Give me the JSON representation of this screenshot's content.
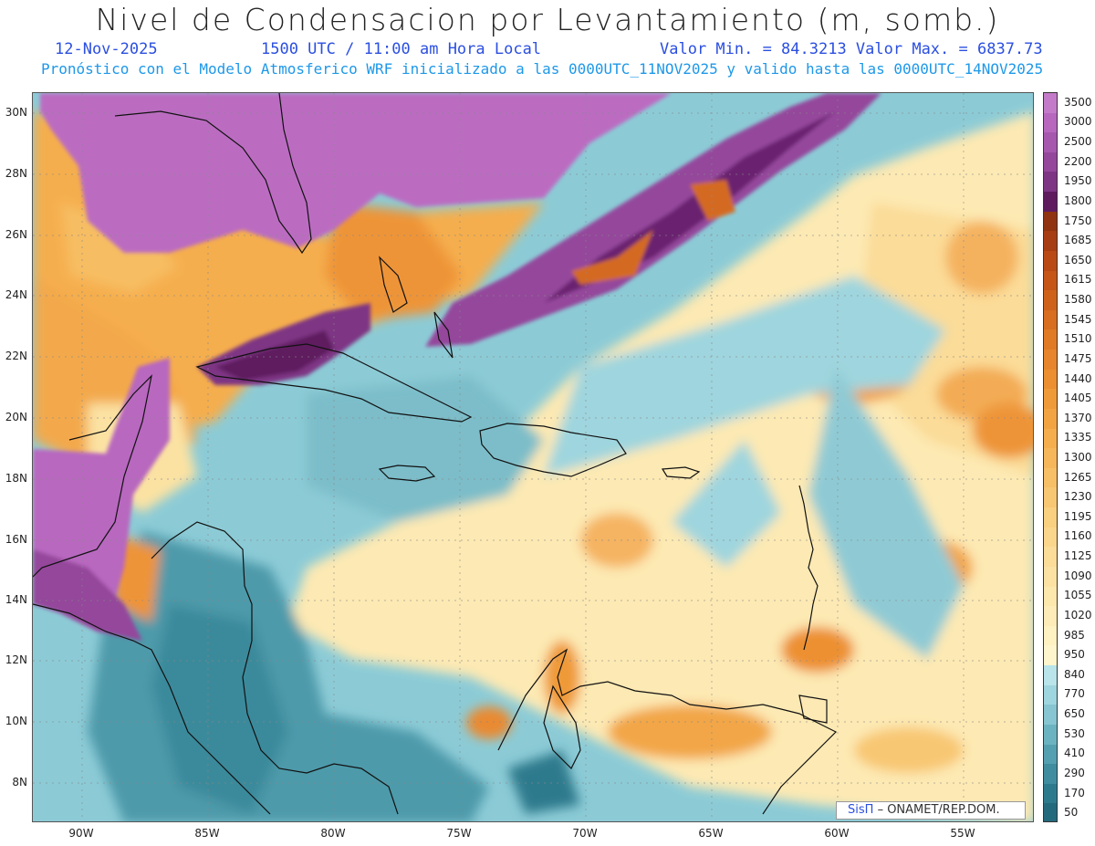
{
  "header": {
    "title": "Nivel de Condensacion por Levantamiento (m, somb.)",
    "date": "12-Nov-2025",
    "time": "1500 UTC / 11:00 am Hora Local",
    "minmax": "Valor Min. = 84.3213  Valor Max. = 6837.73",
    "forecast": "Pronóstico con el Modelo Atmosferico WRF inicializado a las 0000UTC_11NOV2025 y valido hasta las  0000UTC_14NOV2025"
  },
  "axes": {
    "lat_labels": [
      "30N",
      "28N",
      "26N",
      "24N",
      "22N",
      "20N",
      "18N",
      "16N",
      "14N",
      "12N",
      "10N",
      "8N"
    ],
    "lon_labels": [
      "90W",
      "85W",
      "80W",
      "75W",
      "70W",
      "65W",
      "60W",
      "55W"
    ]
  },
  "legend": {
    "labels": [
      "3500",
      "3000",
      "2500",
      "2200",
      "1950",
      "1800",
      "1750",
      "1685",
      "1650",
      "1615",
      "1580",
      "1545",
      "1510",
      "1475",
      "1440",
      "1405",
      "1370",
      "1335",
      "1300",
      "1265",
      "1230",
      "1195",
      "1160",
      "1125",
      "1090",
      "1055",
      "1020",
      "985",
      "950",
      "840",
      "770",
      "650",
      "530",
      "410",
      "290",
      "170",
      "50"
    ],
    "colors": [
      "#c37bc9",
      "#b867bf",
      "#a658ae",
      "#94479b",
      "#7e3584",
      "#5e1b5e",
      "#8f3311",
      "#a73d12",
      "#b94a15",
      "#c55618",
      "#cf621b",
      "#d86e20",
      "#e07a25",
      "#e6852b",
      "#eb8f31",
      "#ef9a38",
      "#f2a443",
      "#f5ae4e",
      "#f6b65a",
      "#f7bf66",
      "#f8c773",
      "#f9cf80",
      "#fad68c",
      "#fbdc98",
      "#fbe2a3",
      "#fce7ad",
      "#fdecb8",
      "#fef1c2",
      "#fff5cc",
      "#b8e4ea",
      "#9fd5de",
      "#86c5d1",
      "#6cb3c1",
      "#54a0b0",
      "#3f8d9f",
      "#2e7a8d",
      "#246a7d"
    ]
  },
  "credit": {
    "brand": "SisΠ",
    "text": "– ONAMET/REP.DOM."
  }
}
